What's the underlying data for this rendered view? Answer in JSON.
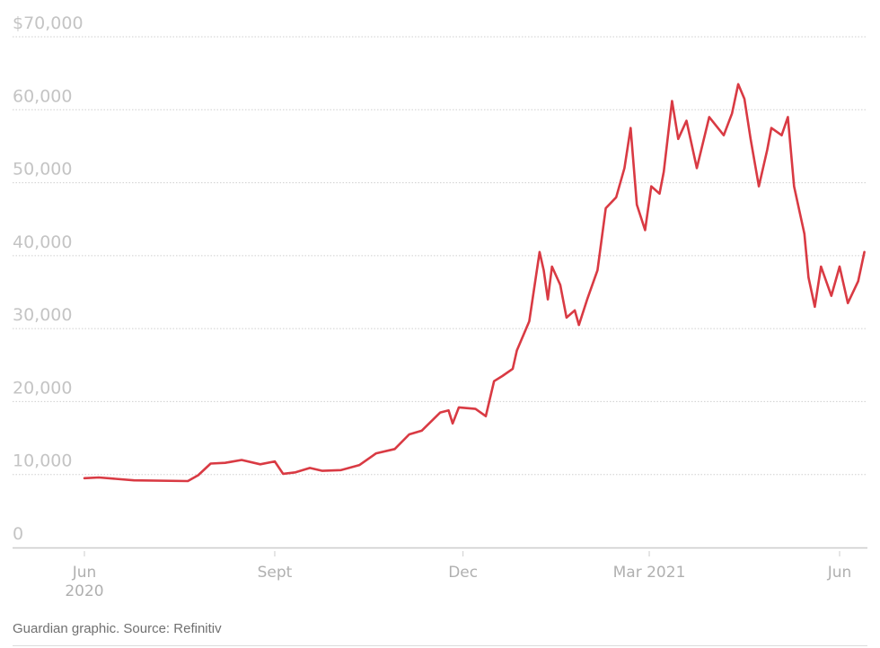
{
  "chart_data": {
    "type": "line",
    "title": "",
    "xlabel": "",
    "ylabel": "",
    "ylim": [
      0,
      70000
    ],
    "y_ticks": [
      0,
      10000,
      20000,
      30000,
      40000,
      50000,
      60000,
      70000
    ],
    "y_tick_labels": [
      "0",
      "10,000",
      "20,000",
      "30,000",
      "40,000",
      "50,000",
      "60,000",
      "$70,000"
    ],
    "x_ticks": [
      "2020-06-01",
      "2020-09-01",
      "2020-12-01",
      "2021-03-01",
      "2021-06-01"
    ],
    "x_tick_labels": [
      "Jun",
      "Sept",
      "Dec",
      "Mar 2021",
      "Jun"
    ],
    "x_tick_sublabels": [
      "2020",
      "",
      "",
      "",
      ""
    ],
    "xlim": [
      "2020-06-01",
      "2021-06-13"
    ],
    "grid": "horizontal dotted",
    "line_color": "#d93a43",
    "series": [
      {
        "x": [
          "2020-06-01",
          "2020-06-08",
          "2020-06-25",
          "2020-07-21",
          "2020-07-26",
          "2020-08-01",
          "2020-08-08",
          "2020-08-16",
          "2020-08-25",
          "2020-09-01",
          "2020-09-05",
          "2020-09-11",
          "2020-09-18",
          "2020-09-24",
          "2020-10-03",
          "2020-10-12",
          "2020-10-20",
          "2020-10-29",
          "2020-11-05",
          "2020-11-11",
          "2020-11-20",
          "2020-11-24",
          "2020-11-26",
          "2020-11-29",
          "2020-12-07",
          "2020-12-12",
          "2020-12-16",
          "2020-12-20",
          "2020-12-25",
          "2020-12-27",
          "2021-01-02",
          "2021-01-07",
          "2021-01-09",
          "2021-01-11",
          "2021-01-13",
          "2021-01-17",
          "2021-01-20",
          "2021-01-24",
          "2021-01-26",
          "2021-01-30",
          "2021-02-04",
          "2021-02-08",
          "2021-02-13",
          "2021-02-17",
          "2021-02-20",
          "2021-02-23",
          "2021-02-27",
          "2021-03-02",
          "2021-03-06",
          "2021-03-08",
          "2021-03-12",
          "2021-03-15",
          "2021-03-19",
          "2021-03-24",
          "2021-03-30",
          "2021-04-06",
          "2021-04-10",
          "2021-04-13",
          "2021-04-16",
          "2021-04-19",
          "2021-04-23",
          "2021-04-27",
          "2021-04-29",
          "2021-05-04",
          "2021-05-07",
          "2021-05-10",
          "2021-05-15",
          "2021-05-17",
          "2021-05-20",
          "2021-05-23",
          "2021-05-28",
          "2021-06-01",
          "2021-06-05",
          "2021-06-10",
          "2021-06-13"
        ],
        "values": [
          9500,
          9600,
          9200,
          9100,
          9900,
          11500,
          11600,
          12000,
          11400,
          11800,
          10100,
          10300,
          10900,
          10500,
          10600,
          11300,
          12900,
          13500,
          15500,
          16000,
          18500,
          18800,
          17000,
          19200,
          19000,
          18000,
          22800,
          23500,
          24500,
          27000,
          31000,
          40500,
          38000,
          34000,
          38500,
          36000,
          31500,
          32500,
          30500,
          34000,
          38000,
          46500,
          48000,
          52000,
          57500,
          47000,
          43500,
          49500,
          48500,
          51500,
          61200,
          56000,
          58500,
          52000,
          59000,
          56500,
          59500,
          63500,
          61500,
          56000,
          49500,
          54500,
          57500,
          56500,
          59000,
          49500,
          43000,
          37000,
          33000,
          38500,
          34500,
          38500,
          33500,
          36500,
          40500
        ]
      }
    ]
  },
  "source": "Guardian graphic. Source: Refinitiv"
}
